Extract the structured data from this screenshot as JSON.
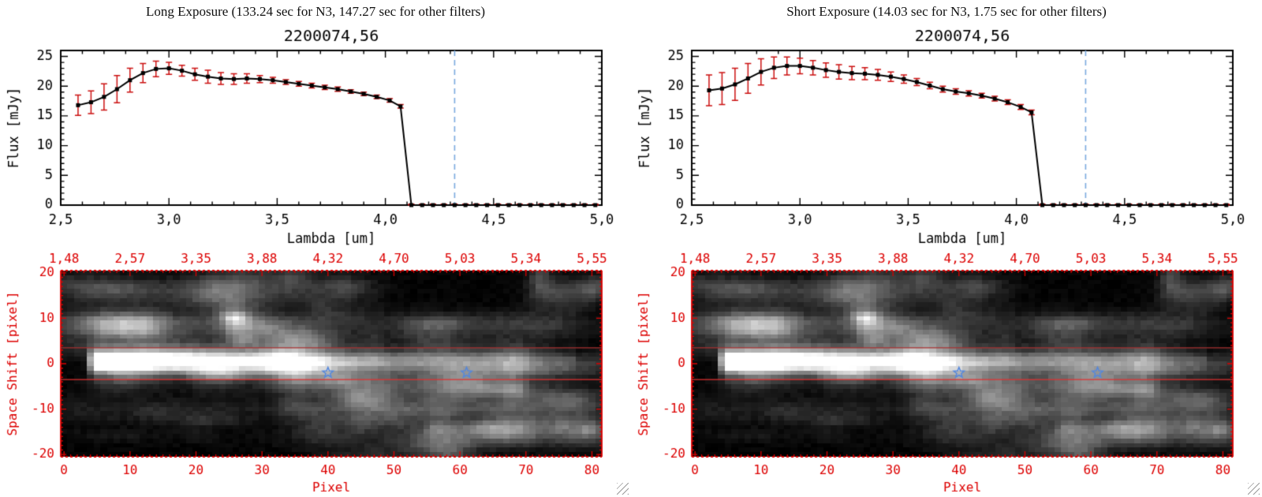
{
  "window": {
    "background": "#ffffff"
  },
  "chart_data": [
    {
      "id": "long-exposure",
      "header": "Long Exposure (133.24 sec for N3, 147.27 sec for other filters)",
      "spectrum": {
        "type": "line",
        "title": "2200074,56",
        "xlabel": "Lambda [um]",
        "ylabel": "Flux [mJy]",
        "xlim": [
          2.5,
          5.0
        ],
        "ylim": [
          0,
          26
        ],
        "xtick_values": [
          2.5,
          3.0,
          3.5,
          4.0,
          4.5,
          5.0
        ],
        "xtick_labels": [
          "2,5",
          "3,0",
          "3,5",
          "4,0",
          "4,5",
          "5,0"
        ],
        "ytick_values": [
          0,
          5,
          10,
          15,
          20,
          25
        ],
        "line_color": "#000000",
        "marker": "square",
        "error_color": "#cc1111",
        "dashed_line": {
          "x": 4.32,
          "color": "#7aaade"
        },
        "x": [
          2.58,
          2.64,
          2.7,
          2.76,
          2.82,
          2.88,
          2.94,
          3.0,
          3.06,
          3.12,
          3.18,
          3.24,
          3.3,
          3.36,
          3.42,
          3.48,
          3.54,
          3.6,
          3.66,
          3.72,
          3.78,
          3.84,
          3.9,
          3.96,
          4.02,
          4.07,
          4.12,
          4.17,
          4.22,
          4.27,
          4.32,
          4.37,
          4.42,
          4.47,
          4.52,
          4.57,
          4.62,
          4.67,
          4.72,
          4.77,
          4.82,
          4.87,
          4.92,
          4.97
        ],
        "flux": [
          16.8,
          17.3,
          18.2,
          19.5,
          21.0,
          22.2,
          22.9,
          23.0,
          22.6,
          22.0,
          21.6,
          21.3,
          21.2,
          21.3,
          21.2,
          21.0,
          20.7,
          20.4,
          20.1,
          19.8,
          19.5,
          19.1,
          18.7,
          18.2,
          17.6,
          16.6,
          0,
          0,
          0,
          0,
          0,
          0,
          0,
          0,
          0,
          0,
          0,
          0,
          0,
          0,
          0,
          0,
          0,
          0
        ],
        "err": [
          1.7,
          1.9,
          2.2,
          2.3,
          2.0,
          1.6,
          1.3,
          1.0,
          0.9,
          1.0,
          1.1,
          1.0,
          0.9,
          0.8,
          0.6,
          0.5,
          0.4,
          0.4,
          0.4,
          0.35,
          0.35,
          0.3,
          0.3,
          0.3,
          0.3,
          0.3,
          0.15,
          0.15,
          0.15,
          0.15,
          0.15,
          0.15,
          0.15,
          0.15,
          0.15,
          0.15,
          0.15,
          0.15,
          0.15,
          0.15,
          0.15,
          0.15,
          0.15,
          0.15
        ]
      },
      "image_plot": {
        "type": "heatmap",
        "xlabel": "Pixel",
        "ylabel": "Space Shift [pixel]",
        "xlim": [
          0,
          81
        ],
        "ylim": [
          -20.5,
          20.5
        ],
        "xticks": [
          0,
          10,
          20,
          30,
          40,
          50,
          60,
          70,
          80
        ],
        "yticks": [
          20,
          10,
          0,
          -10,
          -20
        ],
        "top_axis_labels": [
          "1,48",
          "2,57",
          "3,35",
          "3,88",
          "4,32",
          "4,70",
          "5,03",
          "5,34",
          "5,55"
        ],
        "axis_color": "#dd0000",
        "aperture_lines": [
          {
            "y": 3.5,
            "color": "#a83030"
          },
          {
            "y": -3.5,
            "color": "#e03030"
          }
        ],
        "stars": [
          {
            "x": 40,
            "y": -2
          },
          {
            "x": 61,
            "y": -2
          }
        ],
        "star_color": "#5588dd",
        "seed": 7,
        "description": "Grayscale 2D spectral image; bright horizontal trace near space shift 0 from pixel ~4 to ~77, brightest at pixels 5-15, fainter diffuse clouds above and below"
      }
    },
    {
      "id": "short-exposure",
      "header": "Short Exposure (14.03 sec for N3, 1.75 sec for other filters)",
      "spectrum": {
        "type": "line",
        "title": "2200074,56",
        "xlabel": "Lambda [um]",
        "ylabel": "Flux [mJy]",
        "xlim": [
          2.5,
          5.0
        ],
        "ylim": [
          0,
          26
        ],
        "xtick_values": [
          2.5,
          3.0,
          3.5,
          4.0,
          4.5,
          5.0
        ],
        "xtick_labels": [
          "2,5",
          "3,0",
          "3,5",
          "4,0",
          "4,5",
          "5,0"
        ],
        "ytick_values": [
          0,
          5,
          10,
          15,
          20,
          25
        ],
        "line_color": "#000000",
        "marker": "square",
        "error_color": "#cc1111",
        "dashed_line": {
          "x": 4.32,
          "color": "#7aaade"
        },
        "x": [
          2.58,
          2.64,
          2.7,
          2.76,
          2.82,
          2.88,
          2.94,
          3.0,
          3.06,
          3.12,
          3.18,
          3.24,
          3.3,
          3.36,
          3.42,
          3.48,
          3.54,
          3.6,
          3.66,
          3.72,
          3.78,
          3.84,
          3.9,
          3.96,
          4.02,
          4.07,
          4.12,
          4.17,
          4.22,
          4.27,
          4.32,
          4.37,
          4.42,
          4.47,
          4.52,
          4.57,
          4.62,
          4.67,
          4.72,
          4.77,
          4.82,
          4.87,
          4.92,
          4.97
        ],
        "flux": [
          19.3,
          19.6,
          20.3,
          21.3,
          22.4,
          23.1,
          23.4,
          23.4,
          23.1,
          22.7,
          22.4,
          22.2,
          22.1,
          21.9,
          21.6,
          21.2,
          20.7,
          20.1,
          19.5,
          19.1,
          18.8,
          18.4,
          17.9,
          17.3,
          16.5,
          15.6,
          0,
          0,
          0,
          0,
          0,
          0,
          0,
          0,
          0,
          0,
          0,
          0,
          0,
          0,
          0,
          0,
          0,
          0
        ],
        "err": [
          2.6,
          2.7,
          2.7,
          2.5,
          2.2,
          1.8,
          1.5,
          1.3,
          1.2,
          1.2,
          1.2,
          1.1,
          1.0,
          0.9,
          0.8,
          0.7,
          0.6,
          0.55,
          0.5,
          0.45,
          0.45,
          0.4,
          0.4,
          0.4,
          0.4,
          0.4,
          0.15,
          0.15,
          0.15,
          0.15,
          0.15,
          0.15,
          0.15,
          0.15,
          0.15,
          0.15,
          0.15,
          0.15,
          0.15,
          0.15,
          0.15,
          0.15,
          0.15,
          0.15
        ]
      },
      "image_plot": {
        "type": "heatmap",
        "xlabel": "Pixel",
        "ylabel": "Space Shift [pixel]",
        "xlim": [
          0,
          81
        ],
        "ylim": [
          -20.5,
          20.5
        ],
        "xticks": [
          0,
          10,
          20,
          30,
          40,
          50,
          60,
          70,
          80
        ],
        "yticks": [
          20,
          10,
          0,
          -10,
          -20
        ],
        "top_axis_labels": [
          "1,48",
          "2,57",
          "3,35",
          "3,88",
          "4,32",
          "4,70",
          "5,03",
          "5,34",
          "5,55"
        ],
        "axis_color": "#dd0000",
        "aperture_lines": [
          {
            "y": 3.5,
            "color": "#a83030"
          },
          {
            "y": -3.5,
            "color": "#e03030"
          }
        ],
        "stars": [
          {
            "x": 40,
            "y": -2
          },
          {
            "x": 61,
            "y": -2
          }
        ],
        "star_color": "#5588dd",
        "seed": 7,
        "description": "Grayscale 2D spectral image; bright horizontal trace near space shift 0 from pixel ~4 to ~77, brightest at pixels 5-15, fainter diffuse clouds above and below"
      }
    }
  ]
}
